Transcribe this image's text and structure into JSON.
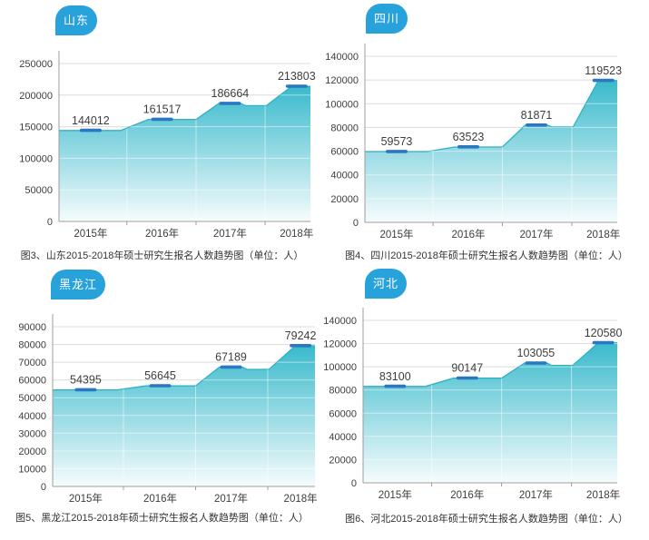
{
  "colors": {
    "badge_blue": "#28A2DB",
    "area_top": "#3ABACC",
    "area_bottom": "#F6FCFD",
    "area_edge": "#2FB1C5",
    "marker_blue": "#2B77C2",
    "gridline": "#DCDCDC",
    "axis": "#9C9C9C",
    "text": "#3D3D3D",
    "caption_text": "#333333"
  },
  "chart_data": [
    {
      "type": "area",
      "badge": "山东",
      "categories": [
        "2015年",
        "2016年",
        "2017年",
        "2018年"
      ],
      "values": [
        144012,
        161517,
        186664,
        213803
      ],
      "y_ticks": [
        0,
        50000,
        100000,
        150000,
        200000,
        250000
      ],
      "ylim": [
        0,
        250000
      ],
      "caption": "图3、山东2015-2018年硕士研究生报名人数趋势图（单位：人）"
    },
    {
      "type": "area",
      "badge": "四川",
      "categories": [
        "2015年",
        "2016年",
        "2017年",
        "2018年"
      ],
      "values": [
        59573,
        63523,
        81871,
        119523
      ],
      "y_ticks": [
        0,
        20000,
        40000,
        60000,
        80000,
        100000,
        120000,
        140000
      ],
      "ylim": [
        0,
        140000
      ],
      "caption": "图4、四川2015-2018年硕士研究生报名人数趋势图（单位：人）"
    },
    {
      "type": "area",
      "badge": "黑龙江",
      "categories": [
        "2015年",
        "2016年",
        "2017年",
        "2018年"
      ],
      "values": [
        54395,
        56645,
        67189,
        79242
      ],
      "y_ticks": [
        0,
        10000,
        20000,
        30000,
        40000,
        50000,
        60000,
        70000,
        80000,
        90000
      ],
      "ylim": [
        0,
        90000
      ],
      "caption": "图5、黑龙江2015-2018年硕士研究生报名人数趋势图（单位：人）"
    },
    {
      "type": "area",
      "badge": "河北",
      "categories": [
        "2015年",
        "2016年",
        "2017年",
        "2018年"
      ],
      "values": [
        83100,
        90147,
        103055,
        120580
      ],
      "y_ticks": [
        0,
        20000,
        40000,
        60000,
        80000,
        100000,
        120000,
        140000
      ],
      "ylim": [
        0,
        140000
      ],
      "caption": "图6、河北2015-2018年硕士研究生报名人数趋势图（单位：人）"
    }
  ]
}
